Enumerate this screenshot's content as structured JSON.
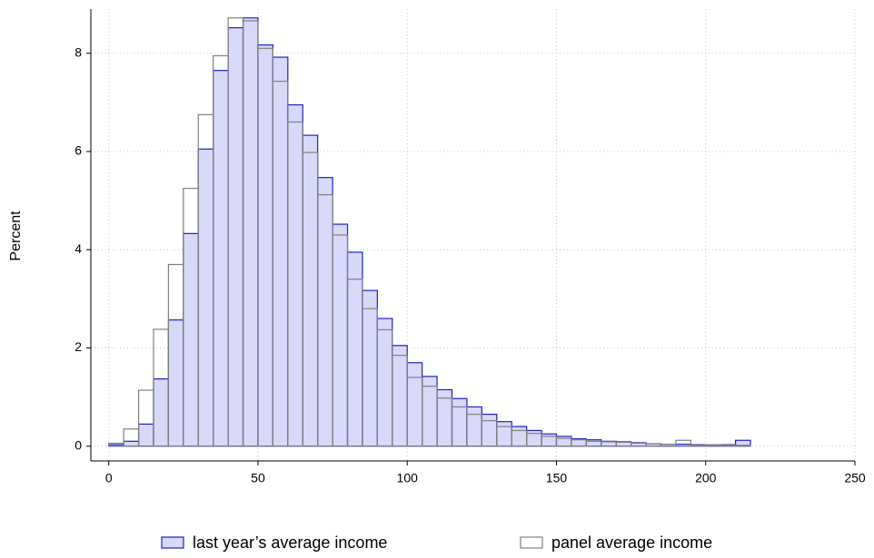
{
  "chart_data": {
    "type": "histogram",
    "y_label": "Percent",
    "bins": [
      0,
      5,
      10,
      15,
      20,
      25,
      30,
      35,
      40,
      45,
      50,
      55,
      60,
      65,
      70,
      75,
      80,
      85,
      90,
      95,
      100,
      105,
      110,
      115,
      120,
      125,
      130,
      135,
      140,
      145,
      150,
      155,
      160,
      165,
      170,
      175,
      180,
      185,
      190,
      195,
      200,
      205,
      210,
      215
    ],
    "series": [
      {
        "name": "last year’s average income",
        "color": "#2020c8",
        "fill": "#d8d8f8",
        "values": [
          0.03,
          0.1,
          0.45,
          1.37,
          2.57,
          4.33,
          6.05,
          7.65,
          8.52,
          8.72,
          8.17,
          7.92,
          6.95,
          6.33,
          5.47,
          4.52,
          3.95,
          3.17,
          2.6,
          2.05,
          1.7,
          1.42,
          1.15,
          0.97,
          0.8,
          0.65,
          0.5,
          0.4,
          0.32,
          0.25,
          0.2,
          0.15,
          0.13,
          0.1,
          0.09,
          0.07,
          0.05,
          0.04,
          0.04,
          0.03,
          0.03,
          0.03,
          0.12
        ]
      },
      {
        "name": "panel average income",
        "color": "#808080",
        "fill": "none",
        "values": [
          0.06,
          0.35,
          1.14,
          2.38,
          3.7,
          5.25,
          6.75,
          7.95,
          8.72,
          8.66,
          8.1,
          7.43,
          6.6,
          5.98,
          5.12,
          4.3,
          3.4,
          2.8,
          2.37,
          1.85,
          1.4,
          1.22,
          0.98,
          0.8,
          0.65,
          0.52,
          0.4,
          0.32,
          0.26,
          0.2,
          0.16,
          0.13,
          0.1,
          0.09,
          0.08,
          0.06,
          0.05,
          0.04,
          0.12,
          0.02,
          0.03,
          0.02,
          0.02
        ]
      }
    ],
    "xlim": [
      -6,
      250
    ],
    "ylim": [
      -0.3,
      8.9
    ],
    "xticks": [
      0,
      50,
      100,
      150,
      200,
      250
    ],
    "yticks": [
      0,
      2,
      4,
      6,
      8
    ],
    "grid": true
  }
}
